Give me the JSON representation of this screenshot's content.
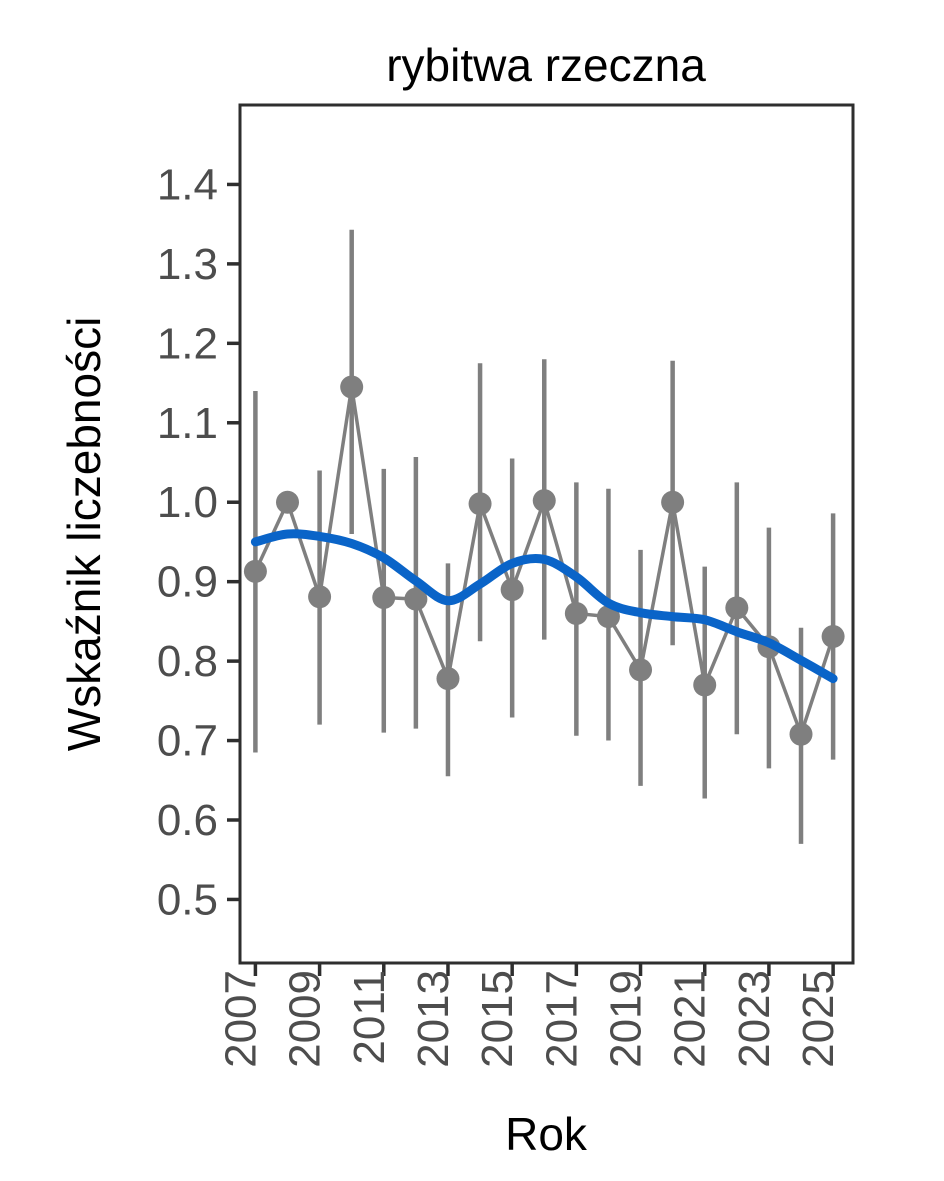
{
  "title": "rybitwa rzeczna",
  "colors": {
    "point": "#7f7f7f",
    "errorbar": "#7f7f7f",
    "connector": "#7f7f7f",
    "smooth_line": "#0a64c8",
    "axis_text": "#4d4d4d",
    "axis_title": "#000000",
    "panel_border": "#2e2e2e",
    "background": "#ffffff"
  },
  "chart_data": {
    "type": "scatter",
    "title": "rybitwa rzeczna",
    "xlabel": "Rok",
    "ylabel": "Wskaźnik liczebności",
    "x": [
      2007,
      2008,
      2009,
      2010,
      2011,
      2012,
      2013,
      2014,
      2015,
      2016,
      2017,
      2018,
      2019,
      2020,
      2021,
      2022,
      2023,
      2024,
      2025
    ],
    "series": [
      {
        "name": "Wskaźnik liczebności",
        "role": "points",
        "values": [
          0.913,
          1.0,
          0.881,
          1.145,
          0.88,
          0.878,
          0.778,
          0.998,
          0.89,
          1.002,
          0.86,
          0.856,
          0.789,
          1.0,
          0.77,
          0.867,
          0.818,
          0.708,
          0.831
        ]
      },
      {
        "name": "ci_low",
        "role": "errorbar-low",
        "values": [
          0.685,
          1.0,
          0.72,
          0.96,
          0.71,
          0.715,
          0.655,
          0.825,
          0.729,
          0.827,
          0.706,
          0.7,
          0.643,
          0.82,
          0.627,
          0.708,
          0.665,
          0.57,
          0.676
        ]
      },
      {
        "name": "ci_high",
        "role": "errorbar-high",
        "values": [
          1.14,
          1.0,
          1.04,
          1.343,
          1.042,
          1.057,
          0.923,
          1.175,
          1.055,
          1.18,
          1.025,
          1.017,
          0.94,
          1.178,
          0.919,
          1.025,
          0.968,
          0.842,
          0.986
        ]
      },
      {
        "name": "trend (smooth)",
        "role": "trend-line",
        "values": [
          0.95,
          0.96,
          0.957,
          0.948,
          0.93,
          0.901,
          0.876,
          0.897,
          0.923,
          0.928,
          0.906,
          0.873,
          0.861,
          0.856,
          0.852,
          0.837,
          0.823,
          0.801,
          0.778
        ]
      }
    ],
    "xticks": [
      2007,
      2009,
      2011,
      2013,
      2015,
      2017,
      2019,
      2021,
      2023,
      2025
    ],
    "yticks": [
      0.5,
      0.6,
      0.7,
      0.8,
      0.9,
      1.0,
      1.1,
      1.2,
      1.3,
      1.4
    ],
    "xlim": [
      2006.52,
      2025.62
    ],
    "ylim": [
      0.42,
      1.5
    ],
    "grid": false,
    "legend": false
  }
}
